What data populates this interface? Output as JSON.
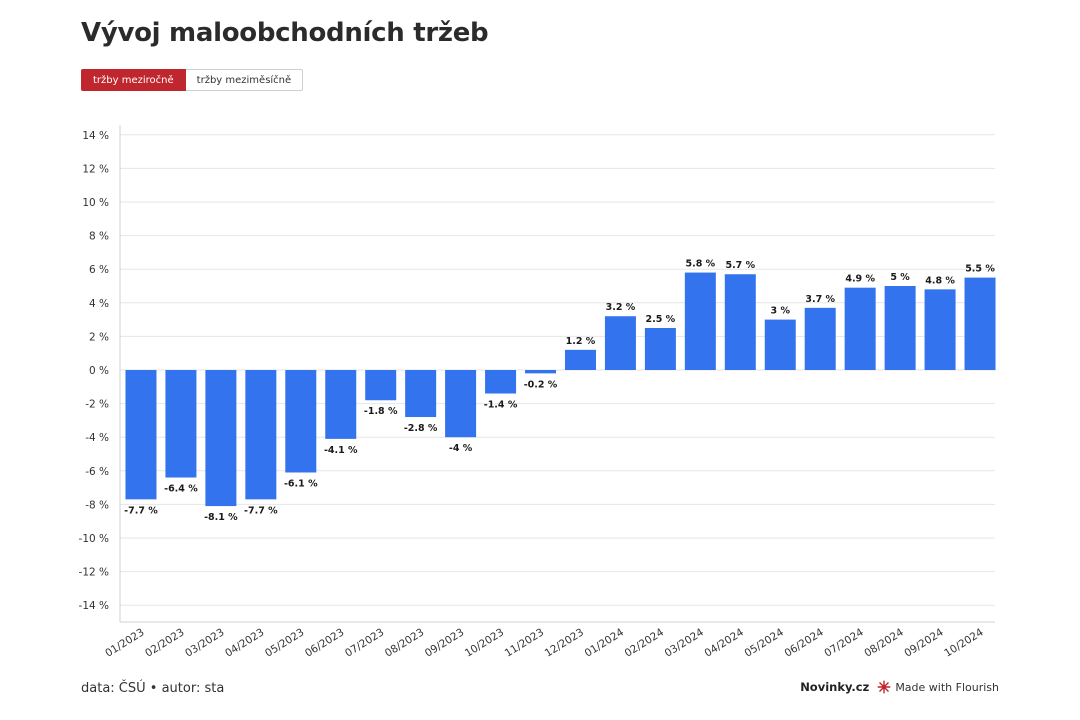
{
  "title": "Vývoj maloobchodních tržeb",
  "tabs": [
    {
      "label": "tržby meziročně",
      "active": true
    },
    {
      "label": "tržby meziměsíčně",
      "active": false
    }
  ],
  "footer": {
    "source": "data: ČSÚ • autor: sta",
    "brand": "Novinky.cz",
    "made_with": "Made with Flourish"
  },
  "colors": {
    "bar": "#3373ee",
    "accent": "#c0262d",
    "grid": "#e6e6e6"
  },
  "chart_data": {
    "type": "bar",
    "categories": [
      "01/2023",
      "02/2023",
      "03/2023",
      "04/2023",
      "05/2023",
      "06/2023",
      "07/2023",
      "08/2023",
      "09/2023",
      "10/2023",
      "11/2023",
      "12/2023",
      "01/2024",
      "02/2024",
      "03/2024",
      "04/2024",
      "05/2024",
      "06/2024",
      "07/2024",
      "08/2024",
      "09/2024",
      "10/2024"
    ],
    "values": [
      -7.7,
      -6.4,
      -8.1,
      -7.7,
      -6.1,
      -4.1,
      -1.8,
      -2.8,
      -4,
      -1.4,
      -0.2,
      1.2,
      3.2,
      2.5,
      5.8,
      5.7,
      3,
      3.7,
      4.9,
      5,
      4.8,
      5.5
    ],
    "value_labels": [
      "-7.7 %",
      "-6.4 %",
      "-8.1 %",
      "-7.7 %",
      "-6.1 %",
      "-4.1 %",
      "-1.8 %",
      "-2.8 %",
      "-4 %",
      "-1.4 %",
      "-0.2 %",
      "1.2 %",
      "3.2 %",
      "2.5 %",
      "5.8 %",
      "5.7 %",
      "3 %",
      "3.7 %",
      "4.9 %",
      "5 %",
      "4.8 %",
      "5.5 %"
    ],
    "yticks": [
      14,
      12,
      10,
      8,
      6,
      4,
      2,
      0,
      -2,
      -4,
      -6,
      -8,
      -10,
      -12,
      -14
    ],
    "ytick_labels": [
      "14 %",
      "12 %",
      "10 %",
      "8 %",
      "6 %",
      "4 %",
      "2 %",
      "0 %",
      "-2 %",
      "-4 %",
      "-6 %",
      "-8 %",
      "-10 %",
      "-12 %",
      "-14 %"
    ],
    "ylim": [
      -14.9,
      14
    ],
    "grid": true,
    "title": "",
    "xlabel": "",
    "ylabel": ""
  }
}
